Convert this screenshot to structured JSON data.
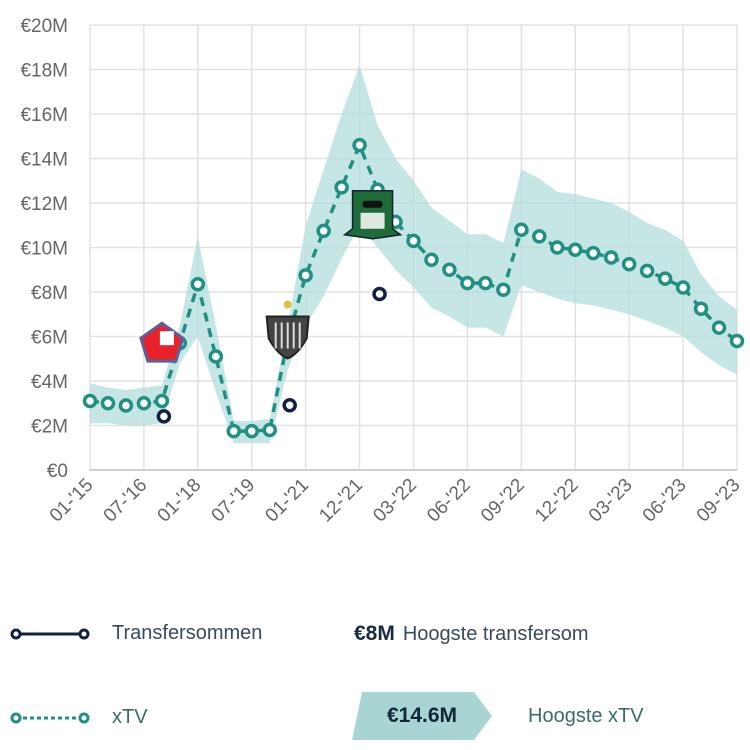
{
  "chart_data": {
    "type": "line",
    "ylim": [
      0,
      20
    ],
    "yticks": [
      "€0",
      "€2M",
      "€4M",
      "€6M",
      "€8M",
      "€10M",
      "€12M",
      "€14M",
      "€16M",
      "€18M",
      "€20M"
    ],
    "xtick_labels": [
      "01-'15",
      "07-'16",
      "01-'18",
      "07-'19",
      "01-'21",
      "12-'21",
      "03-'22",
      "06-'22",
      "09-'22",
      "12-'22",
      "03-'23",
      "06-'23",
      "09-'23"
    ],
    "grid": true,
    "series": [
      {
        "name": "xTV",
        "unit": "€M",
        "color": "#1f9081",
        "values": [
          3.1,
          3.0,
          2.9,
          3.0,
          3.1,
          5.7,
          8.35,
          5.1,
          1.75,
          1.75,
          1.8,
          5.85,
          8.75,
          10.75,
          12.7,
          14.6,
          12.6,
          11.15,
          10.3,
          9.45,
          9.0,
          8.4,
          8.4,
          8.1,
          10.8,
          10.5,
          10.0,
          9.9,
          9.75,
          9.55,
          9.25,
          8.95,
          8.6,
          8.2,
          7.25,
          6.4,
          5.8
        ],
        "band_upper": [
          3.9,
          3.7,
          3.6,
          3.7,
          3.8,
          6.5,
          10.5,
          6.5,
          2.2,
          2.2,
          2.3,
          6.5,
          11.0,
          13.5,
          16.0,
          18.2,
          15.5,
          14.0,
          13.0,
          11.8,
          11.2,
          10.6,
          10.6,
          10.2,
          13.5,
          13.1,
          12.5,
          12.4,
          12.2,
          12.0,
          11.6,
          11.1,
          10.8,
          10.3,
          8.8,
          7.8,
          7.2
        ],
        "band_lower": [
          2.1,
          2.1,
          2.0,
          2.0,
          2.1,
          4.8,
          6.0,
          3.5,
          1.2,
          1.2,
          1.2,
          4.5,
          6.5,
          7.8,
          9.5,
          11.0,
          10.0,
          9.0,
          8.2,
          7.3,
          6.9,
          6.4,
          6.4,
          6.0,
          8.3,
          8.0,
          7.7,
          7.5,
          7.4,
          7.2,
          7.0,
          6.7,
          6.4,
          6.0,
          5.3,
          4.7,
          4.3
        ],
        "band_color": "#b3dedd"
      },
      {
        "name": "Transfersommen",
        "unit": "€M",
        "color": "#13213f",
        "points": [
          {
            "index": 4,
            "value": 2.5,
            "club": "LOSC Lille"
          },
          {
            "index": 11,
            "value": 3.0,
            "club": "Atlético Mineiro"
          },
          {
            "index": 16,
            "value": 8.0,
            "club": "FK Krasnodar"
          }
        ]
      }
    ]
  },
  "legend": {
    "transfers_label": "Transfersommen",
    "xtv_label": "xTV",
    "max_transfer_value": "€8M",
    "max_transfer_label": "Hoogste transfersom",
    "max_xtv_value": "€14.6M",
    "max_xtv_label": "Hoogste xTV",
    "badge_color": "#a8d5d4"
  }
}
